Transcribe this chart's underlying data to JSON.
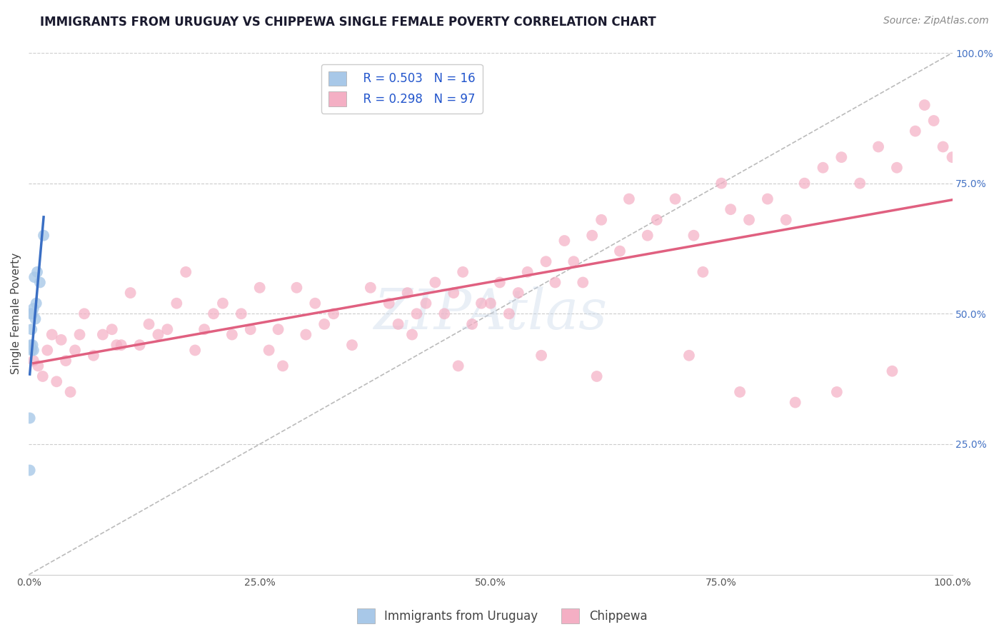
{
  "title": "IMMIGRANTS FROM URUGUAY VS CHIPPEWA SINGLE FEMALE POVERTY CORRELATION CHART",
  "source_text": "Source: ZipAtlas.com",
  "ylabel": "Single Female Poverty",
  "legend_label1": "Immigrants from Uruguay",
  "legend_label2": "Chippewa",
  "r1": 0.503,
  "n1": 16,
  "r2": 0.298,
  "n2": 97,
  "color1": "#a8c8e8",
  "color2": "#f4afc4",
  "line_color1": "#3a6fc4",
  "line_color2": "#e06080",
  "diag_color": "#bbbbbb",
  "watermark": "ZIPAtlas",
  "background_color": "#ffffff",
  "grid_color": "#cccccc",
  "xmin": 0.0,
  "xmax": 1.0,
  "ymin": 0.0,
  "ymax": 1.0,
  "x_ticks": [
    0.0,
    0.25,
    0.5,
    0.75,
    1.0
  ],
  "x_tick_labels": [
    "0.0%",
    "25.0%",
    "50.0%",
    "75.0%",
    "100.0%"
  ],
  "y_ticks": [
    0.25,
    0.5,
    0.75,
    1.0
  ],
  "y_tick_labels": [
    "25.0%",
    "50.0%",
    "75.0%",
    "100.0%"
  ],
  "title_fontsize": 12,
  "axis_label_fontsize": 11,
  "tick_fontsize": 10,
  "legend_fontsize": 12,
  "source_fontsize": 10,
  "right_tick_color": "#4472c4",
  "scatter1_x": [
    0.001,
    0.001,
    0.002,
    0.002,
    0.003,
    0.003,
    0.004,
    0.004,
    0.005,
    0.005,
    0.006,
    0.007,
    0.008,
    0.009,
    0.012,
    0.016
  ],
  "scatter1_y": [
    0.2,
    0.3,
    0.44,
    0.5,
    0.43,
    0.47,
    0.44,
    0.5,
    0.43,
    0.51,
    0.57,
    0.49,
    0.52,
    0.58,
    0.56,
    0.65
  ],
  "scatter2_x": [
    0.005,
    0.01,
    0.015,
    0.02,
    0.025,
    0.03,
    0.04,
    0.045,
    0.05,
    0.055,
    0.06,
    0.07,
    0.08,
    0.09,
    0.1,
    0.11,
    0.12,
    0.13,
    0.14,
    0.15,
    0.16,
    0.17,
    0.18,
    0.19,
    0.2,
    0.21,
    0.22,
    0.23,
    0.24,
    0.25,
    0.27,
    0.29,
    0.3,
    0.31,
    0.32,
    0.33,
    0.35,
    0.37,
    0.39,
    0.4,
    0.41,
    0.42,
    0.43,
    0.44,
    0.45,
    0.46,
    0.47,
    0.48,
    0.49,
    0.5,
    0.51,
    0.52,
    0.53,
    0.54,
    0.56,
    0.57,
    0.58,
    0.59,
    0.6,
    0.61,
    0.62,
    0.64,
    0.65,
    0.67,
    0.68,
    0.7,
    0.72,
    0.73,
    0.75,
    0.76,
    0.78,
    0.8,
    0.82,
    0.84,
    0.86,
    0.88,
    0.9,
    0.92,
    0.94,
    0.96,
    0.97,
    0.98,
    0.99,
    1.0,
    0.035,
    0.095,
    0.26,
    0.415,
    0.555,
    0.715,
    0.83,
    0.875,
    0.935,
    0.275,
    0.465,
    0.615,
    0.77
  ],
  "scatter2_y": [
    0.41,
    0.4,
    0.38,
    0.43,
    0.46,
    0.37,
    0.41,
    0.35,
    0.43,
    0.46,
    0.5,
    0.42,
    0.46,
    0.47,
    0.44,
    0.54,
    0.44,
    0.48,
    0.46,
    0.47,
    0.52,
    0.58,
    0.43,
    0.47,
    0.5,
    0.52,
    0.46,
    0.5,
    0.47,
    0.55,
    0.47,
    0.55,
    0.46,
    0.52,
    0.48,
    0.5,
    0.44,
    0.55,
    0.52,
    0.48,
    0.54,
    0.5,
    0.52,
    0.56,
    0.5,
    0.54,
    0.58,
    0.48,
    0.52,
    0.52,
    0.56,
    0.5,
    0.54,
    0.58,
    0.6,
    0.56,
    0.64,
    0.6,
    0.56,
    0.65,
    0.68,
    0.62,
    0.72,
    0.65,
    0.68,
    0.72,
    0.65,
    0.58,
    0.75,
    0.7,
    0.68,
    0.72,
    0.68,
    0.75,
    0.78,
    0.8,
    0.75,
    0.82,
    0.78,
    0.85,
    0.9,
    0.87,
    0.82,
    0.8,
    0.45,
    0.44,
    0.43,
    0.46,
    0.42,
    0.42,
    0.33,
    0.35,
    0.39,
    0.4,
    0.4,
    0.38,
    0.35
  ]
}
